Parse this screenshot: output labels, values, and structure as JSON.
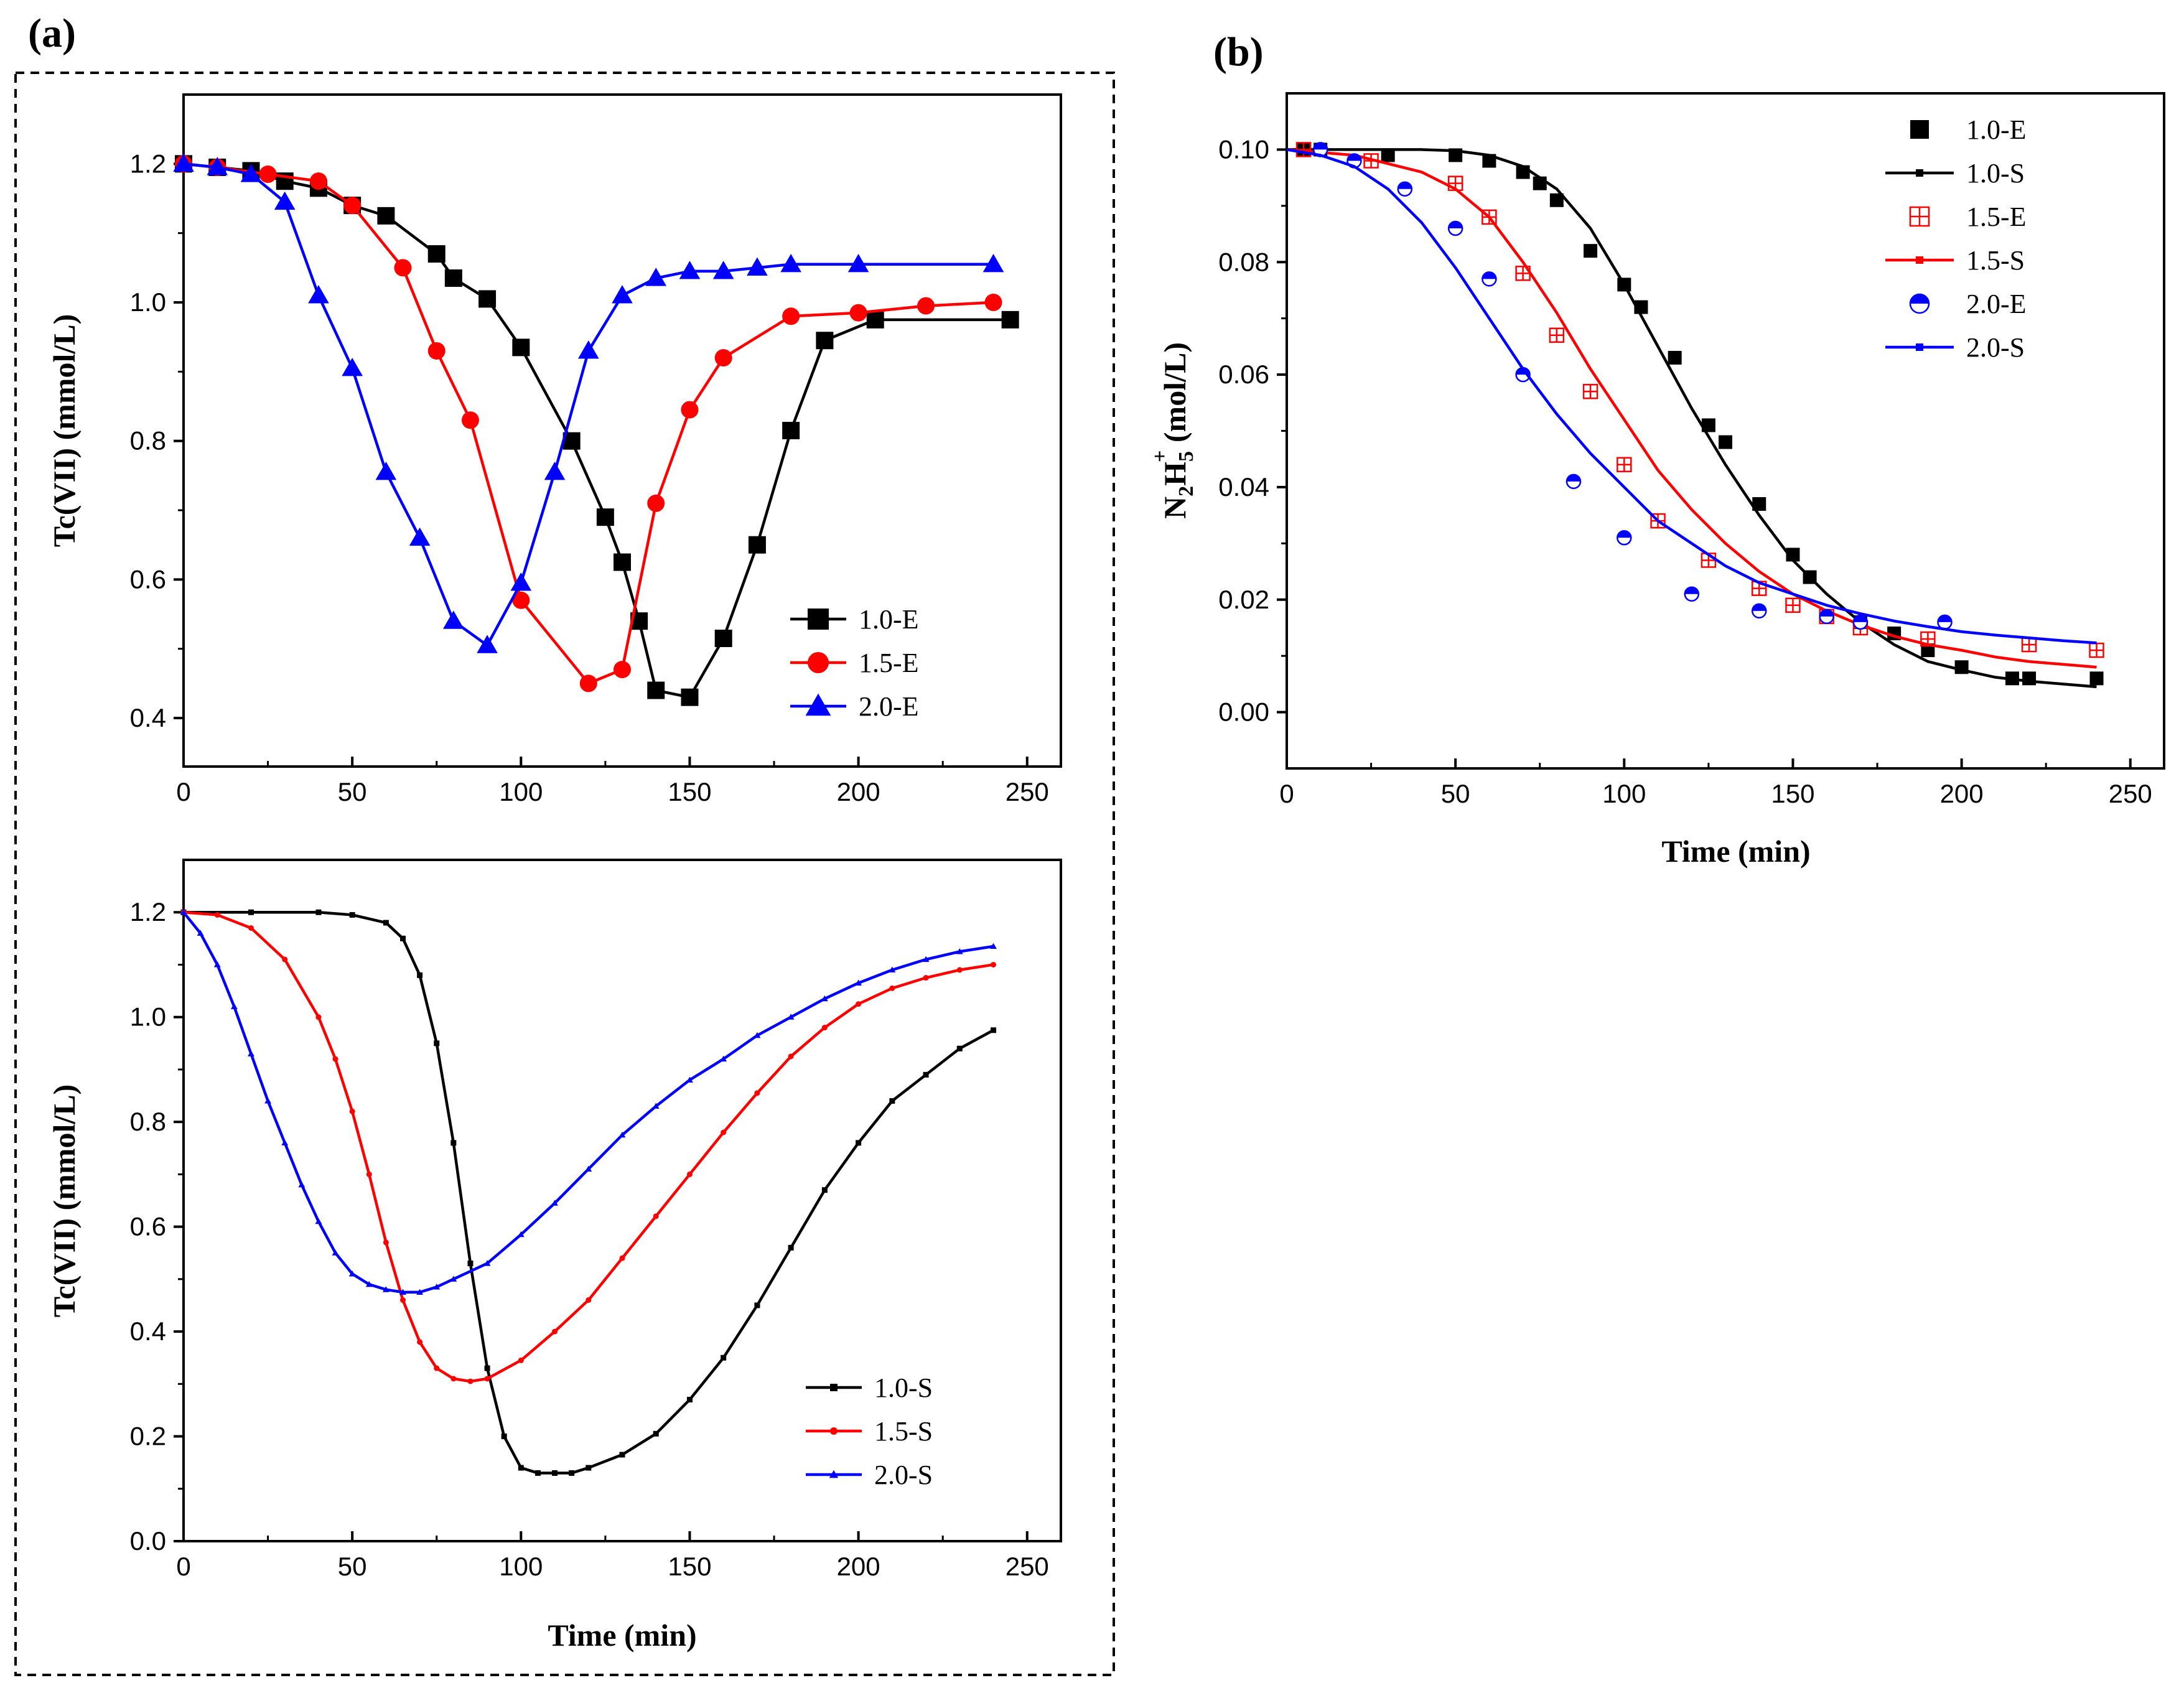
{
  "panel_labels": {
    "a": "(a)",
    "b": "(b)"
  },
  "colors": {
    "black": "#000000",
    "red": "#ff0000",
    "blue": "#0000ff"
  },
  "chart_data": [
    {
      "id": "a_top",
      "type": "line",
      "title": "",
      "xlabel": "",
      "ylabel": "Tc(VII) (mmol/L)",
      "xlim": [
        0,
        260
      ],
      "ylim": [
        0.33,
        1.3
      ],
      "xticks": [
        0,
        50,
        100,
        150,
        200,
        250
      ],
      "yticks": [
        0.4,
        0.6,
        0.8,
        1.0,
        1.2
      ],
      "xtick_labels": [
        "0",
        "50",
        "100",
        "150",
        "200",
        "250"
      ],
      "ytick_labels": [
        "0.4",
        "0.6",
        "0.8",
        "1.0",
        "1.2"
      ],
      "legend_position": "bottom-right",
      "series": [
        {
          "name": "1.0-E",
          "color": "#000000",
          "marker": "square",
          "x": [
            0,
            10,
            20,
            30,
            40,
            50,
            60,
            75,
            80,
            90,
            100,
            115,
            125,
            130,
            135,
            140,
            150,
            160,
            170,
            180,
            190,
            205,
            245
          ],
          "y": [
            1.2,
            1.195,
            1.19,
            1.175,
            1.165,
            1.14,
            1.125,
            1.07,
            1.035,
            1.005,
            0.935,
            0.8,
            0.69,
            0.625,
            0.54,
            0.44,
            0.43,
            0.515,
            0.65,
            0.815,
            0.945,
            0.975,
            0.975
          ]
        },
        {
          "name": "1.5-E",
          "color": "#ff0000",
          "marker": "circle",
          "x": [
            0,
            10,
            25,
            40,
            50,
            65,
            75,
            85,
            100,
            120,
            130,
            140,
            150,
            160,
            180,
            200,
            220,
            240
          ],
          "y": [
            1.2,
            1.195,
            1.185,
            1.175,
            1.14,
            1.05,
            0.93,
            0.83,
            0.57,
            0.45,
            0.47,
            0.71,
            0.845,
            0.92,
            0.98,
            0.985,
            0.995,
            1.0
          ]
        },
        {
          "name": "2.0-E",
          "color": "#0000ff",
          "marker": "triangle",
          "x": [
            0,
            10,
            20,
            30,
            40,
            50,
            60,
            70,
            80,
            90,
            100,
            110,
            120,
            130,
            140,
            150,
            160,
            170,
            180,
            200,
            240
          ],
          "y": [
            1.2,
            1.195,
            1.185,
            1.145,
            1.01,
            0.905,
            0.755,
            0.66,
            0.54,
            0.505,
            0.595,
            0.755,
            0.93,
            1.01,
            1.035,
            1.045,
            1.045,
            1.05,
            1.055,
            1.055,
            1.055
          ]
        }
      ]
    },
    {
      "id": "a_bottom",
      "type": "line",
      "title": "",
      "xlabel": "Time (min)",
      "ylabel": "Tc(VII) (mmol/L)",
      "xlim": [
        0,
        260
      ],
      "ylim": [
        0,
        1.3
      ],
      "xticks": [
        0,
        50,
        100,
        150,
        200,
        250
      ],
      "yticks": [
        0.0,
        0.2,
        0.4,
        0.6,
        0.8,
        1.0,
        1.2
      ],
      "xtick_labels": [
        "0",
        "50",
        "100",
        "150",
        "200",
        "250"
      ],
      "ytick_labels": [
        "0.0",
        "0.2",
        "0.4",
        "0.6",
        "0.8",
        "1.0",
        "1.2"
      ],
      "legend_position": "bottom-right",
      "series": [
        {
          "name": "1.0-S",
          "color": "#000000",
          "marker": "small-square",
          "x": [
            0,
            20,
            40,
            50,
            60,
            65,
            70,
            75,
            80,
            85,
            90,
            95,
            100,
            105,
            110,
            115,
            120,
            130,
            140,
            150,
            160,
            170,
            180,
            190,
            200,
            210,
            220,
            230,
            240
          ],
          "y": [
            1.2,
            1.2,
            1.2,
            1.195,
            1.18,
            1.15,
            1.08,
            0.95,
            0.76,
            0.53,
            0.33,
            0.2,
            0.14,
            0.13,
            0.13,
            0.13,
            0.14,
            0.165,
            0.205,
            0.27,
            0.35,
            0.45,
            0.56,
            0.67,
            0.76,
            0.84,
            0.89,
            0.94,
            0.975
          ]
        },
        {
          "name": "1.5-S",
          "color": "#ff0000",
          "marker": "small-circle",
          "x": [
            0,
            10,
            20,
            30,
            40,
            45,
            50,
            55,
            60,
            65,
            70,
            75,
            80,
            85,
            90,
            100,
            110,
            120,
            130,
            140,
            150,
            160,
            170,
            180,
            190,
            200,
            210,
            220,
            230,
            240
          ],
          "y": [
            1.2,
            1.195,
            1.17,
            1.11,
            1.0,
            0.92,
            0.82,
            0.7,
            0.57,
            0.46,
            0.38,
            0.33,
            0.31,
            0.305,
            0.31,
            0.345,
            0.4,
            0.46,
            0.54,
            0.62,
            0.7,
            0.78,
            0.855,
            0.925,
            0.98,
            1.025,
            1.055,
            1.075,
            1.09,
            1.1
          ]
        },
        {
          "name": "2.0-S",
          "color": "#0000ff",
          "marker": "small-triangle",
          "x": [
            0,
            5,
            10,
            15,
            20,
            25,
            30,
            35,
            40,
            45,
            50,
            55,
            60,
            65,
            70,
            75,
            80,
            90,
            100,
            110,
            120,
            130,
            140,
            150,
            160,
            170,
            180,
            190,
            200,
            210,
            220,
            230,
            240
          ],
          "y": [
            1.2,
            1.16,
            1.1,
            1.02,
            0.93,
            0.84,
            0.76,
            0.68,
            0.61,
            0.55,
            0.51,
            0.49,
            0.48,
            0.475,
            0.475,
            0.485,
            0.5,
            0.53,
            0.585,
            0.645,
            0.71,
            0.775,
            0.83,
            0.88,
            0.92,
            0.965,
            1.0,
            1.035,
            1.065,
            1.09,
            1.11,
            1.125,
            1.135
          ]
        }
      ]
    },
    {
      "id": "b",
      "type": "scatter",
      "title": "",
      "xlabel": "Time (min)",
      "ylabel": "N2H5+ (mol/L)",
      "ylabel_parts": {
        "n": "N",
        "sub1": "2",
        "h": "H",
        "sub2": "5",
        "sup": "+",
        "units": " (mol/L)"
      },
      "xlim": [
        0,
        260
      ],
      "ylim": [
        -0.01,
        0.11
      ],
      "xticks": [
        0,
        50,
        100,
        150,
        200,
        250
      ],
      "yticks": [
        0.0,
        0.02,
        0.04,
        0.06,
        0.08,
        0.1
      ],
      "xtick_labels": [
        "0",
        "50",
        "100",
        "150",
        "200",
        "250"
      ],
      "ytick_labels": [
        "0.00",
        "0.02",
        "0.04",
        "0.06",
        "0.08",
        "0.10"
      ],
      "legend_position": "top-right",
      "series": [
        {
          "name": "1.0-E",
          "color": "#000000",
          "marker": "square",
          "style": "points",
          "x": [
            5,
            10,
            30,
            50,
            60,
            70,
            75,
            80,
            90,
            100,
            105,
            115,
            125,
            130,
            140,
            150,
            155,
            170,
            180,
            190,
            200,
            215,
            220,
            240
          ],
          "y": [
            0.1,
            0.1,
            0.099,
            0.099,
            0.098,
            0.096,
            0.094,
            0.091,
            0.082,
            0.076,
            0.072,
            0.063,
            0.051,
            0.048,
            0.037,
            0.028,
            0.024,
            0.016,
            0.014,
            0.011,
            0.008,
            0.006,
            0.006,
            0.006
          ]
        },
        {
          "name": "1.0-S",
          "color": "#000000",
          "marker": "small-square",
          "style": "line",
          "x": [
            0,
            20,
            40,
            50,
            60,
            70,
            80,
            90,
            100,
            110,
            120,
            130,
            140,
            150,
            160,
            170,
            180,
            190,
            200,
            210,
            220,
            230,
            240
          ],
          "y": [
            0.1,
            0.1,
            0.1,
            0.0998,
            0.099,
            0.097,
            0.093,
            0.086,
            0.076,
            0.065,
            0.054,
            0.044,
            0.035,
            0.027,
            0.021,
            0.016,
            0.012,
            0.009,
            0.0075,
            0.0062,
            0.0055,
            0.005,
            0.0045
          ]
        },
        {
          "name": "1.5-E",
          "color": "#ff0000",
          "marker": "boxed-plus",
          "style": "points",
          "x": [
            5,
            25,
            50,
            60,
            70,
            80,
            90,
            100,
            110,
            125,
            140,
            150,
            160,
            170,
            190,
            220,
            240
          ],
          "y": [
            0.1,
            0.098,
            0.094,
            0.088,
            0.078,
            0.067,
            0.057,
            0.044,
            0.034,
            0.027,
            0.022,
            0.019,
            0.017,
            0.015,
            0.013,
            0.012,
            0.011
          ]
        },
        {
          "name": "1.5-S",
          "color": "#ff0000",
          "marker": "small-square",
          "style": "line",
          "x": [
            0,
            20,
            40,
            50,
            60,
            70,
            80,
            90,
            100,
            110,
            120,
            130,
            140,
            150,
            160,
            170,
            180,
            190,
            200,
            210,
            220,
            230,
            240
          ],
          "y": [
            0.1,
            0.099,
            0.096,
            0.093,
            0.088,
            0.08,
            0.071,
            0.061,
            0.052,
            0.043,
            0.036,
            0.03,
            0.025,
            0.021,
            0.018,
            0.0155,
            0.0135,
            0.012,
            0.011,
            0.0098,
            0.009,
            0.0085,
            0.008
          ]
        },
        {
          "name": "2.0-E",
          "color": "#0000ff",
          "marker": "half-circle",
          "style": "points",
          "x": [
            10,
            20,
            35,
            50,
            60,
            70,
            85,
            100,
            120,
            140,
            160,
            170,
            195
          ],
          "y": [
            0.1,
            0.098,
            0.093,
            0.086,
            0.077,
            0.06,
            0.041,
            0.031,
            0.021,
            0.018,
            0.017,
            0.016,
            0.016
          ]
        },
        {
          "name": "2.0-S",
          "color": "#0000ff",
          "marker": "small-square",
          "style": "line",
          "x": [
            0,
            10,
            20,
            30,
            40,
            50,
            60,
            70,
            80,
            90,
            100,
            110,
            120,
            130,
            140,
            150,
            160,
            170,
            180,
            190,
            200,
            210,
            220,
            230,
            240
          ],
          "y": [
            0.1,
            0.099,
            0.097,
            0.093,
            0.087,
            0.079,
            0.07,
            0.061,
            0.053,
            0.046,
            0.04,
            0.034,
            0.03,
            0.026,
            0.023,
            0.021,
            0.019,
            0.0175,
            0.0162,
            0.0152,
            0.0143,
            0.0137,
            0.0132,
            0.0127,
            0.0123
          ]
        }
      ]
    }
  ]
}
